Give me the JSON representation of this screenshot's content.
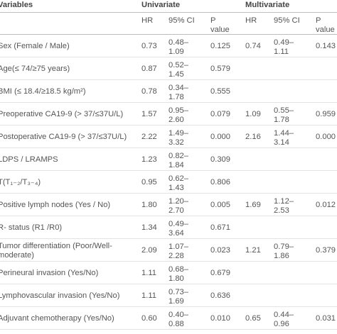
{
  "header": {
    "variables": "Variables",
    "univariate": "Univariate",
    "multivariate": "Multivariate",
    "hr": "HR",
    "ci": "95% CI",
    "p1": "P",
    "p2": "value",
    "hr_m": "HR",
    "ci_m": "95% CI",
    "p1_m": "P",
    "p2_m": "value"
  },
  "rows": [
    {
      "v1": "Sex (Female / Male)",
      "v2": "",
      "hr": "0.73",
      "ci1": "0.48–",
      "ci2": "1.09",
      "p": "0.125",
      "mhr": "0.74",
      "mci1": "0.49–",
      "mci2": "1.11",
      "mp": "0.143"
    },
    {
      "v1": "Age(≤ 74/≥75 years)",
      "v2": "",
      "hr": "0.87",
      "ci1": "0.52–",
      "ci2": "1.45",
      "p": "0.579",
      "mhr": "",
      "mci1": "",
      "mci2": "",
      "mp": ""
    },
    {
      "v1": "BMI (≤ 18.4/≥18.5 kg/m²)",
      "v2": "",
      "hr": "0.78",
      "ci1": "0.34–",
      "ci2": "1.78",
      "p": "0.555",
      "mhr": "",
      "mci1": "",
      "mci2": "",
      "mp": ""
    },
    {
      "v1": "Preoperative CA19-9 (> 37/≤37U/L)",
      "v2": "",
      "hr": "1.57",
      "ci1": "0.95–",
      "ci2": "2.60",
      "p": "0.079",
      "mhr": "1.09",
      "mci1": "0.55–",
      "mci2": "1.78",
      "mp": "0.959"
    },
    {
      "v1": "Postoperative CA19-9 (> 37/≤37U/L)",
      "v2": "",
      "hr": "2.22",
      "ci1": "1.49–",
      "ci2": "3.32",
      "p": "0.000",
      "mhr": "2.16",
      "mci1": "1.44–",
      "mci2": "3.14",
      "mp": "0.000"
    },
    {
      "v1": "LDPS / LRAMPS",
      "v2": "",
      "hr": "1.23",
      "ci1": "0.82–",
      "ci2": "1.84",
      "p": "0.309",
      "mhr": "",
      "mci1": "",
      "mci2": "",
      "mp": ""
    },
    {
      "v1": "T(T₁₋₂/T₃₋₄)",
      "v2": "",
      "hr": "0.95",
      "ci1": "0.62–",
      "ci2": "1.43",
      "p": "0.806",
      "mhr": "",
      "mci1": "",
      "mci2": "",
      "mp": ""
    },
    {
      "v1": "Positive lymph nodes (Yes / No)",
      "v2": "",
      "hr": "1.80",
      "ci1": "1.20–",
      "ci2": "2.70",
      "p": "0.005",
      "mhr": "1.69",
      "mci1": "1.12–",
      "mci2": "2.53",
      "mp": "0.012"
    },
    {
      "v1": "R- status (R1 /R0)",
      "v2": "",
      "hr": "1.34",
      "ci1": "0.49–",
      "ci2": "3.64",
      "p": "0.671",
      "mhr": "",
      "mci1": "",
      "mci2": "",
      "mp": ""
    },
    {
      "v1": "Tumor differentiation (Poor/Well-",
      "v2": "moderate)",
      "hr": "2.09",
      "ci1": "1.07–",
      "ci2": "2.28",
      "p": "0.023",
      "mhr": "1.21",
      "mci1": "0.79–",
      "mci2": "1.86",
      "mp": "0.379"
    },
    {
      "v1": "Perineural invasion (Yes/No)",
      "v2": "",
      "hr": "1.11",
      "ci1": "0.68–",
      "ci2": "1.80",
      "p": "0.679",
      "mhr": "",
      "mci1": "",
      "mci2": "",
      "mp": ""
    },
    {
      "v1": "Lymphovascular invasion (Yes/No)",
      "v2": "",
      "hr": "1.11",
      "ci1": "0.73–",
      "ci2": "1.69",
      "p": "0.636",
      "mhr": "",
      "mci1": "",
      "mci2": "",
      "mp": ""
    },
    {
      "v1": "Adjuvant chemotherapy (Yes/No)",
      "v2": "",
      "hr": "0.60",
      "ci1": "0.40–",
      "ci2": "0.88",
      "p": "0.010",
      "mhr": "0.65",
      "mci1": "0.44–",
      "mci2": "0.96",
      "mp": "0.031"
    }
  ]
}
